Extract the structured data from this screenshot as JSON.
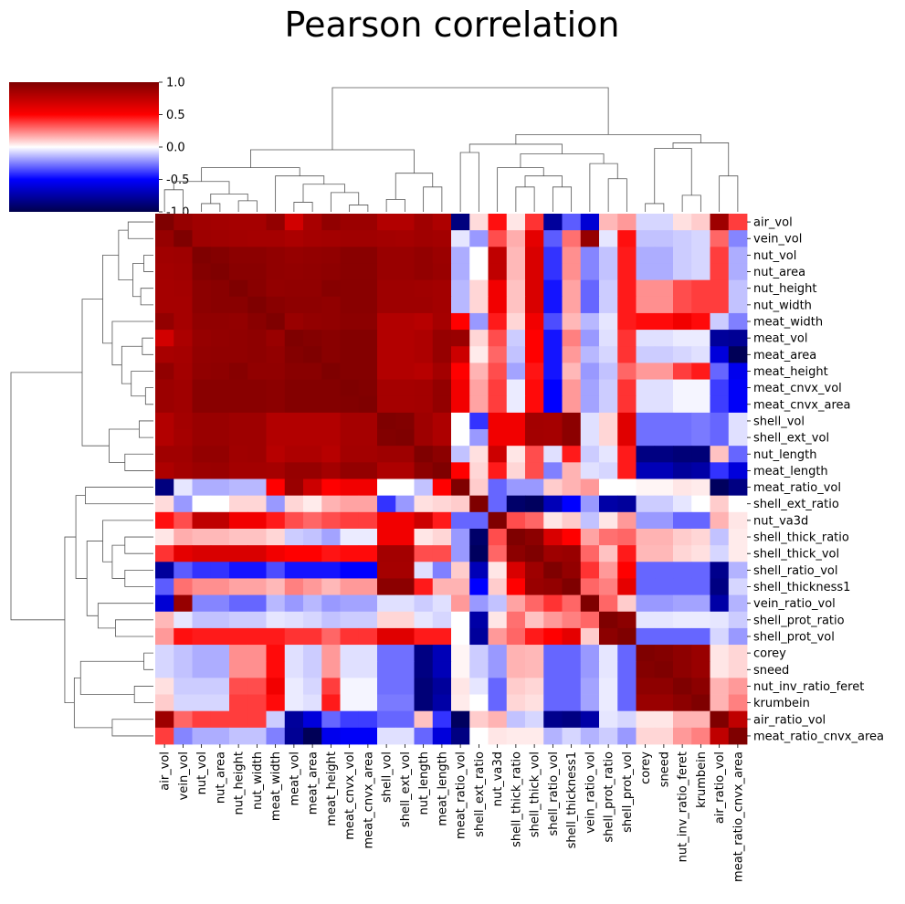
{
  "chart_data": {
    "type": "heatmap",
    "title": "Pearson correlation",
    "labels": [
      "air_vol",
      "vein_vol",
      "nut_vol",
      "nut_area",
      "nut_height",
      "nut_width",
      "meat_width",
      "meat_vol",
      "meat_area",
      "meat_height",
      "meat_cnvx_vol",
      "meat_cnvx_area",
      "shell_vol",
      "shell_ext_vol",
      "nut_length",
      "meat_length",
      "meat_ratio_vol",
      "shell_ext_ratio",
      "nut_va3d",
      "shell_thick_ratio",
      "shell_thick_vol",
      "shell_ratio_vol",
      "shell_thickness1",
      "vein_ratio_vol",
      "shell_prot_ratio",
      "shell_prot_vol",
      "corey",
      "sneed",
      "nut_inv_ratio_feret",
      "krumbein",
      "air_ratio_vol",
      "meat_ratio_cnvx_area"
    ],
    "x_tick_labels": [
      "air_vol",
      "vein_vol",
      "nut_vol",
      "nut_area",
      "nut_height",
      "nut_width",
      "meat_width",
      "meat_vol",
      "meat_area",
      "meat_height",
      "meat_cnvx_vol",
      "meat_cnvx_area",
      "shell_vol",
      "shell_ext_vol",
      "nut_length",
      "meat_length",
      "meat_ratio_vol",
      "shell_ext_ratio",
      "nut_va3d",
      "shell_thick_ratio",
      "shell_thick_vol",
      "shell_ratio_vol",
      "shell_thickness1",
      "vein_ratio_vol",
      "shell_prot_ratio",
      "shell_prot_vol",
      "corey",
      "sneed",
      "nut_inv_ratio_feret",
      "krumbein",
      "air_ratio_vol",
      "meat_ratio_cnvx_area"
    ],
    "y_tick_labels": [
      "air_vol",
      "vein_vol",
      "nut_vol",
      "nut_area",
      "nut_height",
      "nut_width",
      "meat_width",
      "meat_vol",
      "meat_area",
      "meat_height",
      "meat_cnvx_vol",
      "meat_cnvx_area",
      "shell_vol",
      "shell_ext_vol",
      "nut_length",
      "meat_length",
      "meat_ratio_vol",
      "shell_ext_ratio",
      "nut_va3d",
      "shell_thick_ratio",
      "shell_thick_vol",
      "shell_ratio_vol",
      "shell_thickness1",
      "vein_ratio_vol",
      "shell_prot_ratio",
      "shell_prot_vol",
      "corey",
      "sneed",
      "nut_inv_ratio_feret",
      "krumbein",
      "air_ratio_vol",
      "meat_ratio_cnvx_area"
    ],
    "colorbar": {
      "vmin": -1,
      "vmax": 1,
      "ticks": [
        "1.0",
        "0.5",
        "0.0",
        "-0.5",
        "-1.0"
      ],
      "colormap": "seismic"
    },
    "values": [
      [
        1,
        0.91,
        0.87,
        0.86,
        0.85,
        0.85,
        0.92,
        0.68,
        0.84,
        0.93,
        0.89,
        0.89,
        0.8,
        0.8,
        0.87,
        0.82,
        -0.86,
        0.07,
        0.47,
        0.05,
        0.4,
        -0.78,
        -0.32,
        -0.62,
        0.14,
        0.2,
        -0.08,
        -0.08,
        0.06,
        0.1,
        0.88,
        0.38
      ],
      [
        0.91,
        1,
        0.88,
        0.87,
        0.86,
        0.85,
        0.85,
        0.83,
        0.85,
        0.86,
        0.87,
        0.87,
        0.86,
        0.85,
        0.87,
        0.86,
        -0.05,
        -0.2,
        0.35,
        0.16,
        0.6,
        -0.32,
        0.28,
        0.91,
        -0.05,
        0.47,
        -0.12,
        -0.12,
        -0.1,
        -0.08,
        0.3,
        -0.24
      ],
      [
        0.87,
        0.88,
        1,
        0.98,
        0.95,
        0.95,
        0.93,
        0.91,
        0.92,
        0.93,
        0.96,
        0.96,
        0.9,
        0.9,
        0.92,
        0.89,
        -0.16,
        0,
        0.75,
        0.14,
        0.65,
        -0.4,
        0.22,
        -0.24,
        -0.12,
        0.45,
        -0.16,
        -0.16,
        -0.1,
        -0.08,
        0.38,
        -0.16
      ],
      [
        0.86,
        0.87,
        0.98,
        1,
        0.96,
        0.96,
        0.93,
        0.92,
        0.93,
        0.94,
        0.96,
        0.96,
        0.9,
        0.9,
        0.92,
        0.9,
        -0.16,
        0,
        0.75,
        0.14,
        0.65,
        -0.4,
        0.22,
        -0.24,
        -0.12,
        0.45,
        -0.16,
        -0.16,
        -0.1,
        -0.08,
        0.38,
        -0.16
      ],
      [
        0.85,
        0.86,
        0.95,
        0.96,
        1,
        0.96,
        0.92,
        0.93,
        0.93,
        0.97,
        0.96,
        0.96,
        0.88,
        0.88,
        0.87,
        0.86,
        -0.14,
        0.08,
        0.55,
        0.12,
        0.65,
        -0.46,
        0.18,
        -0.3,
        -0.1,
        0.45,
        0.22,
        0.22,
        0.35,
        0.38,
        0.38,
        -0.12
      ],
      [
        0.85,
        0.85,
        0.95,
        0.96,
        0.96,
        1,
        0.96,
        0.94,
        0.94,
        0.93,
        0.96,
        0.96,
        0.88,
        0.88,
        0.88,
        0.86,
        -0.14,
        0.08,
        0.55,
        0.12,
        0.65,
        -0.46,
        0.18,
        -0.3,
        -0.1,
        0.45,
        0.22,
        0.22,
        0.35,
        0.38,
        0.38,
        -0.12
      ],
      [
        0.92,
        0.85,
        0.93,
        0.93,
        0.92,
        0.96,
        1,
        0.9,
        0.92,
        0.93,
        0.95,
        0.95,
        0.8,
        0.8,
        0.78,
        0.85,
        0.5,
        -0.2,
        0.45,
        0.08,
        0.55,
        -0.35,
        0.14,
        -0.14,
        -0.05,
        0.45,
        0.48,
        0.48,
        0.55,
        0.48,
        -0.1,
        -0.25
      ],
      [
        0.68,
        0.83,
        0.91,
        0.92,
        0.93,
        0.94,
        0.9,
        1,
        0.98,
        0.96,
        0.98,
        0.98,
        0.8,
        0.8,
        0.82,
        0.91,
        0.9,
        0.08,
        0.35,
        -0.1,
        0.5,
        -0.46,
        0.25,
        -0.2,
        -0.06,
        0.4,
        -0.06,
        -0.06,
        -0.04,
        -0.04,
        -0.78,
        -0.8
      ],
      [
        0.84,
        0.85,
        0.92,
        0.93,
        0.93,
        0.94,
        0.92,
        0.98,
        1,
        0.96,
        0.98,
        0.98,
        0.8,
        0.8,
        0.82,
        0.91,
        0.7,
        0.04,
        0.3,
        -0.12,
        0.5,
        -0.46,
        0.2,
        -0.14,
        -0.08,
        0.4,
        -0.1,
        -0.1,
        -0.08,
        -0.06,
        -0.6,
        -0.97
      ],
      [
        0.93,
        0.86,
        0.93,
        0.94,
        0.97,
        0.93,
        0.93,
        0.96,
        0.96,
        1,
        0.98,
        0.98,
        0.8,
        0.8,
        0.78,
        0.86,
        0.5,
        0.15,
        0.35,
        -0.18,
        0.46,
        -0.46,
        0.14,
        -0.2,
        -0.12,
        0.3,
        0.2,
        0.2,
        0.38,
        0.45,
        -0.3,
        -0.55
      ],
      [
        0.89,
        0.87,
        0.96,
        0.96,
        0.96,
        0.96,
        0.95,
        0.98,
        0.98,
        0.98,
        1,
        0.99,
        0.85,
        0.85,
        0.86,
        0.92,
        0.55,
        0.18,
        0.38,
        -0.04,
        0.48,
        -0.5,
        0.2,
        -0.18,
        -0.1,
        0.4,
        -0.06,
        -0.06,
        -0.02,
        -0.02,
        -0.38,
        -0.52
      ],
      [
        0.89,
        0.87,
        0.96,
        0.96,
        0.96,
        0.96,
        0.95,
        0.98,
        0.98,
        0.98,
        0.99,
        1,
        0.85,
        0.85,
        0.86,
        0.92,
        0.55,
        0.18,
        0.38,
        -0.04,
        0.48,
        -0.5,
        0.2,
        -0.18,
        -0.1,
        0.4,
        -0.06,
        -0.06,
        -0.02,
        -0.02,
        -0.38,
        -0.52
      ],
      [
        0.8,
        0.86,
        0.9,
        0.9,
        0.88,
        0.88,
        0.8,
        0.8,
        0.8,
        0.8,
        0.85,
        0.85,
        1,
        0.99,
        0.88,
        0.82,
        0,
        -0.4,
        0.55,
        0.55,
        0.86,
        0.85,
        0.95,
        -0.06,
        0.08,
        0.62,
        -0.28,
        -0.28,
        -0.28,
        -0.26,
        -0.3,
        -0.06
      ],
      [
        0.8,
        0.85,
        0.9,
        0.9,
        0.88,
        0.88,
        0.8,
        0.8,
        0.8,
        0.8,
        0.85,
        0.85,
        0.99,
        1,
        0.88,
        0.82,
        0,
        -0.2,
        0.55,
        0.55,
        0.86,
        0.85,
        0.95,
        -0.06,
        0.08,
        0.62,
        -0.28,
        -0.28,
        -0.28,
        -0.26,
        -0.3,
        -0.06
      ],
      [
        0.87,
        0.87,
        0.92,
        0.92,
        0.87,
        0.88,
        0.78,
        0.82,
        0.82,
        0.78,
        0.86,
        0.86,
        0.88,
        0.88,
        1,
        0.95,
        -0.12,
        0.06,
        0.7,
        0.05,
        0.35,
        -0.06,
        0.45,
        -0.1,
        -0.05,
        0.45,
        -0.85,
        -0.85,
        -0.88,
        -0.88,
        0.12,
        -0.3
      ],
      [
        0.82,
        0.86,
        0.89,
        0.9,
        0.86,
        0.86,
        0.85,
        0.91,
        0.91,
        0.86,
        0.92,
        0.92,
        0.82,
        0.82,
        0.95,
        1,
        0.5,
        0.08,
        0.45,
        0.08,
        0.35,
        -0.25,
        0.15,
        -0.06,
        -0.08,
        0.45,
        -0.7,
        -0.7,
        -0.78,
        -0.75,
        -0.4,
        -0.6
      ],
      [
        -0.86,
        -0.05,
        -0.16,
        -0.16,
        -0.14,
        -0.14,
        0.5,
        0.9,
        0.7,
        0.5,
        0.55,
        0.55,
        0,
        0,
        -0.12,
        0.5,
        1,
        0.1,
        -0.3,
        -0.2,
        -0.2,
        0.1,
        0.15,
        0.2,
        0,
        0,
        0.02,
        0.02,
        0.05,
        0.04,
        -0.95,
        -0.85
      ],
      [
        0.07,
        -0.2,
        0,
        0,
        0.08,
        0.08,
        -0.2,
        0.08,
        0.04,
        0.15,
        0.18,
        0.18,
        -0.4,
        -0.2,
        0.06,
        0.08,
        0.1,
        1,
        -0.3,
        -0.92,
        -0.95,
        -0.7,
        -0.5,
        -0.2,
        -0.75,
        -0.78,
        -0.1,
        -0.1,
        -0.05,
        0,
        0.1,
        0
      ],
      [
        0.47,
        0.35,
        0.75,
        0.75,
        0.55,
        0.55,
        0.45,
        0.35,
        0.3,
        0.35,
        0.38,
        0.38,
        0.55,
        0.55,
        0.7,
        0.45,
        -0.3,
        -0.3,
        1,
        0.35,
        0.3,
        0.05,
        0.1,
        -0.12,
        0.05,
        0.2,
        -0.2,
        -0.2,
        -0.3,
        -0.3,
        0.15,
        0.05
      ],
      [
        0.05,
        0.16,
        0.14,
        0.14,
        0.12,
        0.12,
        0.08,
        -0.1,
        -0.12,
        -0.18,
        -0.04,
        -0.04,
        0.55,
        0.55,
        0.05,
        0.08,
        -0.2,
        -0.92,
        0.35,
        1,
        0.95,
        0.65,
        0.5,
        0.18,
        0.28,
        0.3,
        0.15,
        0.15,
        0.1,
        0.08,
        -0.12,
        0.04
      ],
      [
        0.4,
        0.6,
        0.65,
        0.65,
        0.65,
        0.65,
        0.55,
        0.5,
        0.5,
        0.46,
        0.48,
        0.48,
        0.86,
        0.86,
        0.35,
        0.35,
        -0.2,
        -0.95,
        0.3,
        0.95,
        1,
        0.88,
        0.9,
        0.3,
        0.12,
        0.45,
        0.14,
        0.14,
        0.08,
        0.06,
        -0.08,
        0.04
      ],
      [
        -0.78,
        -0.32,
        -0.4,
        -0.4,
        -0.46,
        -0.46,
        -0.35,
        -0.46,
        -0.46,
        -0.46,
        -0.5,
        -0.5,
        0.85,
        0.85,
        -0.06,
        -0.25,
        0.1,
        -0.7,
        0.05,
        0.65,
        0.88,
        1,
        0.92,
        0.4,
        0.2,
        0.5,
        -0.3,
        -0.3,
        -0.3,
        -0.3,
        -0.82,
        -0.15
      ],
      [
        -0.32,
        0.28,
        0.22,
        0.22,
        0.18,
        0.18,
        0.14,
        0.25,
        0.2,
        0.14,
        0.2,
        0.2,
        0.95,
        0.95,
        0.45,
        0.15,
        0.15,
        -0.5,
        0.1,
        0.5,
        0.9,
        0.92,
        1,
        0.3,
        0.25,
        0.6,
        -0.3,
        -0.3,
        -0.3,
        -0.3,
        -0.85,
        -0.08
      ],
      [
        -0.62,
        0.91,
        -0.24,
        -0.24,
        -0.3,
        -0.3,
        -0.14,
        -0.2,
        -0.14,
        -0.2,
        -0.18,
        -0.18,
        -0.06,
        -0.06,
        -0.1,
        -0.06,
        0.2,
        -0.2,
        -0.12,
        0.18,
        0.3,
        0.4,
        0.3,
        1,
        0.3,
        0.1,
        -0.2,
        -0.2,
        -0.18,
        -0.18,
        -0.75,
        -0.15
      ],
      [
        0.14,
        -0.05,
        -0.12,
        -0.12,
        -0.1,
        -0.1,
        -0.05,
        -0.06,
        -0.08,
        -0.12,
        -0.1,
        -0.1,
        0.08,
        0.08,
        -0.05,
        -0.08,
        0,
        -0.75,
        0.05,
        0.28,
        0.12,
        0.2,
        0.25,
        0.3,
        1,
        0.95,
        -0.05,
        -0.05,
        -0.04,
        -0.04,
        -0.05,
        -0.1
      ],
      [
        0.2,
        0.47,
        0.45,
        0.45,
        0.45,
        0.45,
        0.45,
        0.4,
        0.4,
        0.3,
        0.4,
        0.4,
        0.62,
        0.62,
        0.45,
        0.45,
        0,
        -0.78,
        0.2,
        0.3,
        0.45,
        0.5,
        0.6,
        0.1,
        0.95,
        1,
        -0.3,
        -0.3,
        -0.3,
        -0.3,
        -0.08,
        -0.2
      ],
      [
        -0.08,
        -0.12,
        -0.16,
        -0.16,
        0.22,
        0.22,
        0.48,
        -0.06,
        -0.1,
        0.2,
        -0.06,
        -0.06,
        -0.28,
        -0.28,
        -0.85,
        -0.7,
        0.02,
        -0.1,
        -0.2,
        0.15,
        0.14,
        -0.3,
        -0.3,
        -0.2,
        -0.05,
        -0.3,
        1,
        0.98,
        0.94,
        0.9,
        0.05,
        0.08
      ],
      [
        -0.08,
        -0.12,
        -0.16,
        -0.16,
        0.22,
        0.22,
        0.48,
        -0.06,
        -0.1,
        0.2,
        -0.06,
        -0.06,
        -0.28,
        -0.28,
        -0.85,
        -0.7,
        0.02,
        -0.1,
        -0.2,
        0.15,
        0.14,
        -0.3,
        -0.3,
        -0.2,
        -0.05,
        -0.3,
        0.98,
        1,
        0.94,
        0.9,
        0.05,
        0.08
      ],
      [
        0.06,
        -0.1,
        -0.1,
        -0.1,
        0.35,
        0.35,
        0.55,
        -0.04,
        -0.08,
        0.38,
        -0.02,
        -0.02,
        -0.28,
        -0.28,
        -0.88,
        -0.78,
        0.05,
        -0.05,
        -0.3,
        0.1,
        0.08,
        -0.3,
        -0.3,
        -0.18,
        -0.04,
        -0.3,
        0.94,
        0.94,
        1,
        0.95,
        0.15,
        0.2
      ],
      [
        0.1,
        -0.08,
        -0.08,
        -0.08,
        0.38,
        0.38,
        0.48,
        -0.04,
        -0.06,
        0.45,
        -0.02,
        -0.02,
        -0.26,
        -0.26,
        -0.88,
        -0.75,
        0.04,
        0,
        -0.3,
        0.08,
        0.06,
        -0.3,
        -0.3,
        -0.18,
        -0.04,
        -0.3,
        0.9,
        0.9,
        0.95,
        1,
        0.15,
        0.25
      ],
      [
        0.88,
        0.3,
        0.38,
        0.38,
        0.38,
        0.38,
        -0.1,
        -0.78,
        -0.6,
        -0.3,
        -0.38,
        -0.38,
        -0.3,
        -0.3,
        0.12,
        -0.4,
        -0.95,
        0.1,
        0.15,
        -0.12,
        -0.08,
        -0.82,
        -0.85,
        -0.75,
        -0.05,
        -0.08,
        0.05,
        0.05,
        0.15,
        0.15,
        1,
        0.75
      ],
      [
        0.38,
        -0.24,
        -0.16,
        -0.16,
        -0.12,
        -0.12,
        -0.25,
        -0.8,
        -0.97,
        -0.55,
        -0.52,
        -0.52,
        -0.06,
        -0.06,
        -0.3,
        -0.6,
        -0.85,
        0,
        0.05,
        0.04,
        0.04,
        -0.15,
        -0.08,
        -0.15,
        -0.1,
        -0.2,
        0.08,
        0.08,
        0.2,
        0.25,
        0.75,
        1
      ]
    ]
  }
}
